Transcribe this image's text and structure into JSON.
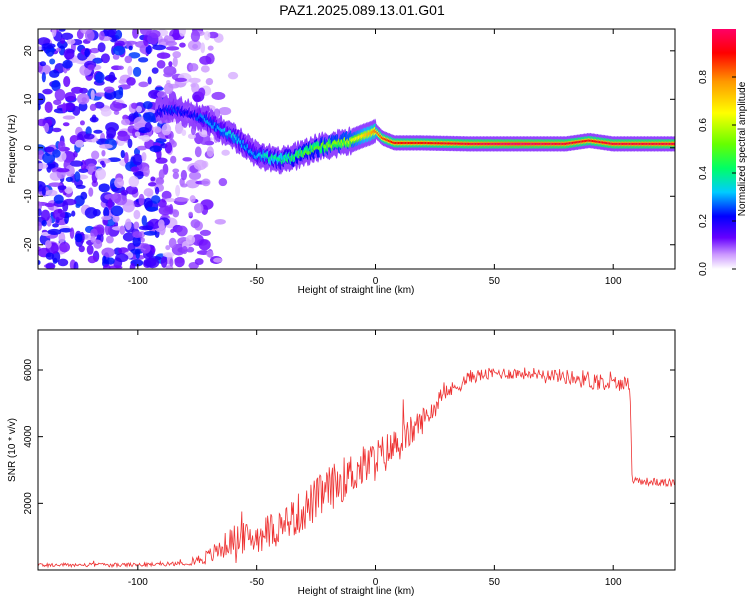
{
  "figure": {
    "title": "PAZ1.2025.089.13.01.G01"
  },
  "chart_data": [
    {
      "type": "heatmap",
      "title": "PAZ1.2025.089.13.01.G01",
      "xlabel": "Height of straight line (km)",
      "ylabel": "Frequency (Hz)",
      "xlim": [
        -142,
        126
      ],
      "ylim": [
        -25,
        24.5
      ],
      "xticks": [
        -100,
        -50,
        0,
        50,
        100
      ],
      "yticks": [
        -20,
        -10,
        0,
        10,
        20
      ],
      "grid": false,
      "ridge": {
        "x": [
          -92,
          -85,
          -78,
          -72,
          -66,
          -60,
          -55,
          -50,
          -45,
          -40,
          -35,
          -30,
          -25,
          -20,
          -15,
          -10,
          -5,
          -2,
          0,
          3,
          8,
          20,
          40,
          60,
          80,
          90,
          100,
          110,
          126
        ],
        "y": [
          7.5,
          8.0,
          7.0,
          6.0,
          4.0,
          2.5,
          0.5,
          -1.5,
          -2.0,
          -2.5,
          -2.0,
          -1.0,
          0.0,
          0.5,
          1.0,
          1.5,
          2.5,
          3.0,
          3.5,
          2.0,
          1.0,
          1.0,
          0.8,
          0.8,
          0.8,
          1.5,
          0.8,
          0.8,
          0.8
        ],
        "amp": [
          0.2,
          0.25,
          0.2,
          0.3,
          0.3,
          0.35,
          0.3,
          0.3,
          0.4,
          0.4,
          0.45,
          0.5,
          0.5,
          0.55,
          0.55,
          0.6,
          0.7,
          0.75,
          0.8,
          0.85,
          0.9,
          0.9,
          0.95,
          1.0,
          0.95,
          0.9,
          0.95,
          0.95,
          0.95
        ]
      },
      "noise_region_x": [
        -142,
        -88
      ],
      "colorbar": {
        "label": "Normalized spectral amplitude",
        "ticks": [
          0.0,
          0.2,
          0.4,
          0.6,
          0.8
        ],
        "range": [
          0,
          1
        ]
      }
    },
    {
      "type": "line",
      "xlabel": "Height of straight line (km)",
      "ylabel": "SNR (10 * v/v)",
      "xlim": [
        -142,
        126
      ],
      "ylim": [
        0,
        7200
      ],
      "xticks": [
        -100,
        -50,
        0,
        50,
        100
      ],
      "yticks": [
        2000,
        4000,
        6000
      ],
      "grid": false,
      "series": [
        {
          "color": "#ee3333",
          "x": [
            -142,
            -100,
            -80,
            -70,
            -60,
            -50,
            -40,
            -30,
            -20,
            -10,
            0,
            10,
            20,
            30,
            40,
            50,
            60,
            70,
            80,
            90,
            100,
            107,
            108,
            115,
            126
          ],
          "y": [
            150,
            150,
            200,
            400,
            900,
            1000,
            1300,
            1800,
            2400,
            2900,
            3300,
            3800,
            4500,
            5300,
            5800,
            5900,
            5900,
            5900,
            5800,
            5700,
            5600,
            5600,
            2700,
            2650,
            2600
          ],
          "noise": [
            60,
            60,
            60,
            250,
            450,
            500,
            600,
            650,
            700,
            650,
            650,
            550,
            400,
            250,
            200,
            180,
            180,
            180,
            220,
            300,
            250,
            200,
            120,
            120,
            120
          ]
        }
      ]
    }
  ],
  "colors": {
    "accent": "#ee3333",
    "colormap": [
      "#ffffff",
      "#cc99ff",
      "#6600ff",
      "#0000ff",
      "#00ccff",
      "#00ff66",
      "#66ff00",
      "#ffff00",
      "#ff9900",
      "#ff0000",
      "#ff0066"
    ]
  }
}
